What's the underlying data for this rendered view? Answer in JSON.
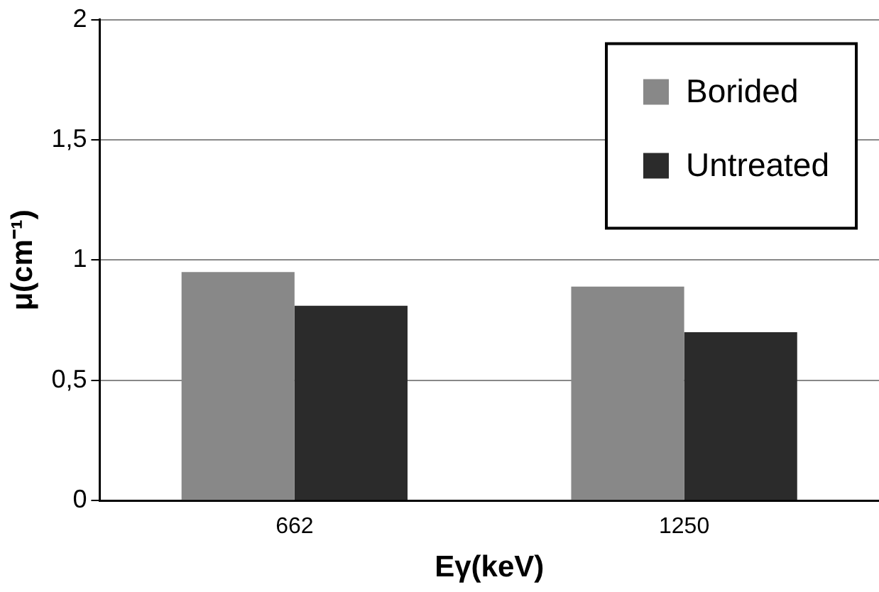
{
  "chart_data": {
    "type": "bar",
    "xlabel": "Eγ(keV)",
    "ylabel": "μ(cm⁻¹)",
    "categories": [
      "662",
      "1250"
    ],
    "series": [
      {
        "name": "Borided",
        "color": "#888888",
        "values": [
          0.95,
          0.89
        ]
      },
      {
        "name": "Untreated",
        "color": "#2b2b2b",
        "values": [
          0.81,
          0.7
        ]
      }
    ],
    "ylim": [
      0,
      2
    ],
    "yticks": [
      0,
      {
        "value": 0.5,
        "label": "0,5"
      },
      1,
      {
        "value": 1.5,
        "label": "1,5"
      },
      2
    ],
    "grid": "y",
    "legend": "top right"
  }
}
